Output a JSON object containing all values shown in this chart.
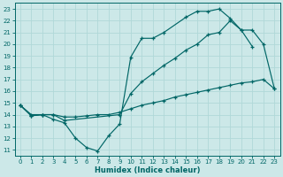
{
  "xlabel": "Humidex (Indice chaleur)",
  "bg_color": "#cce8e8",
  "grid_color": "#b0d8d8",
  "line_color": "#006666",
  "xlim": [
    -0.5,
    23.5
  ],
  "ylim": [
    10.5,
    23.5
  ],
  "xticks": [
    0,
    1,
    2,
    3,
    4,
    5,
    6,
    7,
    8,
    9,
    10,
    11,
    12,
    13,
    14,
    15,
    16,
    17,
    18,
    19,
    20,
    21,
    22,
    23
  ],
  "yticks": [
    11,
    12,
    13,
    14,
    15,
    16,
    17,
    18,
    19,
    20,
    21,
    22,
    23
  ],
  "line1_x": [
    0,
    1,
    2,
    3,
    4,
    5,
    6,
    7,
    8,
    9,
    10,
    11,
    12,
    13,
    15,
    16,
    17,
    18,
    19,
    20,
    21
  ],
  "line1_y": [
    14.8,
    13.9,
    14.0,
    13.6,
    13.3,
    12.0,
    11.2,
    10.9,
    12.2,
    13.2,
    18.9,
    20.5,
    20.5,
    21.0,
    22.3,
    22.8,
    22.8,
    23.0,
    22.2,
    21.2,
    19.8
  ],
  "line2_x": [
    0,
    1,
    2,
    3,
    4,
    9,
    10,
    11,
    12,
    13,
    14,
    15,
    16,
    17,
    18,
    19,
    20,
    21,
    22,
    23
  ],
  "line2_y": [
    14.8,
    13.9,
    14.0,
    14.0,
    13.5,
    14.0,
    15.8,
    16.8,
    17.5,
    18.2,
    18.8,
    19.5,
    20.0,
    20.8,
    21.0,
    22.0,
    21.2,
    21.2,
    20.0,
    16.2
  ],
  "line3_x": [
    0,
    1,
    2,
    3,
    4,
    5,
    6,
    7,
    8,
    9,
    10,
    11,
    12,
    13,
    14,
    15,
    16,
    17,
    18,
    19,
    20,
    21,
    22,
    23
  ],
  "line3_y": [
    14.8,
    14.0,
    14.0,
    14.0,
    13.8,
    13.8,
    13.9,
    14.0,
    14.0,
    14.2,
    14.5,
    14.8,
    15.0,
    15.2,
    15.5,
    15.7,
    15.9,
    16.1,
    16.3,
    16.5,
    16.7,
    16.8,
    17.0,
    16.2
  ]
}
